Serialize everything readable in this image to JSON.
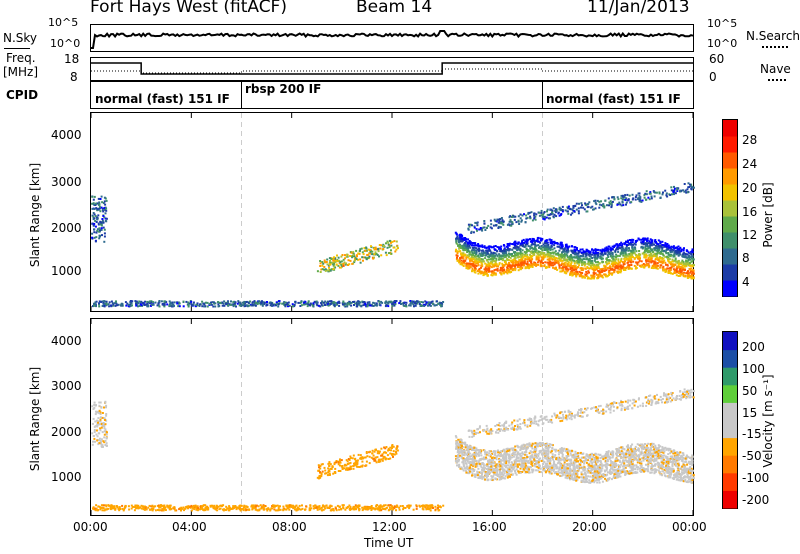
{
  "header": {
    "station": "Fort Hays West (fitACF)",
    "beam": "Beam 14",
    "date": "11/Jan/2013"
  },
  "noise_panel": {
    "left_label": "N.Sky",
    "left_ticks": [
      "10^5",
      "10^0"
    ],
    "right_ticks": [
      "10^5",
      "10^0"
    ],
    "right_label": "N.Search"
  },
  "freq_panel": {
    "left_label_1": "Freq.",
    "left_label_2": "[MHz]",
    "left_ticks": [
      "18",
      "8"
    ],
    "right_ticks": [
      "60",
      "0"
    ],
    "right_label": "Nave"
  },
  "cpid": {
    "label": "CPID",
    "segments": [
      {
        "text": "normal (fast) 151 IF",
        "start_hour": 0
      },
      {
        "text": "rbsp 200 IF",
        "start_hour": 6
      },
      {
        "text": "normal (fast) 151 IF",
        "start_hour": 18
      }
    ]
  },
  "x_axis": {
    "label": "Time UT",
    "ticks": [
      "00:00",
      "04:00",
      "08:00",
      "12:00",
      "16:00",
      "20:00",
      "00:00"
    ]
  },
  "chart_data": [
    {
      "type": "heatmap",
      "name": "power",
      "ylabel": "Slant Range [km]",
      "yticks": [
        "4000",
        "3000",
        "2000",
        "1000"
      ],
      "ylim": [
        180,
        4500
      ],
      "xlim": [
        0,
        24
      ],
      "colorbar": {
        "label": "Power [dB]",
        "ticks": [
          "28",
          "24",
          "20",
          "16",
          "12",
          "8",
          "4"
        ],
        "range": [
          0,
          30
        ],
        "colors": [
          "#0000ff",
          "#1c3ca6",
          "#2f6b8f",
          "#3f8f6b",
          "#5faa4a",
          "#a9c23a",
          "#f2c200",
          "#ff9a00",
          "#ff5a00",
          "#ff1a00",
          "#ee0000"
        ]
      }
    },
    {
      "type": "heatmap",
      "name": "velocity",
      "ylabel": "Slant Range [km]",
      "yticks": [
        "4000",
        "3000",
        "2000",
        "1000"
      ],
      "ylim": [
        180,
        4500
      ],
      "xlim": [
        0,
        24
      ],
      "colorbar": {
        "label": "Velocity [m s⁻¹]",
        "ticks": [
          "200",
          "100",
          "50",
          "15",
          "-15",
          "-50",
          "-100",
          "-200"
        ],
        "range": [
          -250,
          250
        ],
        "colors": [
          "#ee0000",
          "#ff3a00",
          "#ff7a00",
          "#ffa500",
          "#c8c8c8",
          "#c8c8c8",
          "#5fcf3a",
          "#2f9a6a",
          "#1c4fa6",
          "#1010c0"
        ]
      }
    }
  ]
}
